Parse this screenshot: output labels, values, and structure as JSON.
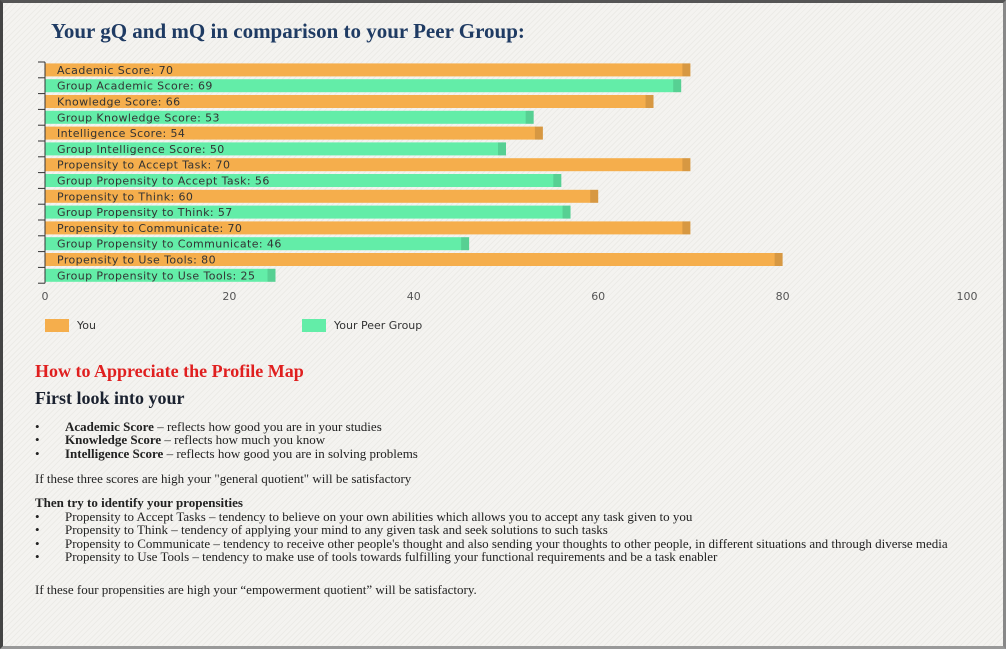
{
  "title": "Your gQ and mQ in comparison to your Peer Group:",
  "chart_data": {
    "type": "bar",
    "orientation": "horizontal",
    "categories": [
      "Academic Score: 70",
      "Group Academic Score: 69",
      "Knowledge Score: 66",
      "Group Knowledge Score: 53",
      "Intelligence Score: 54",
      "Group Intelligence Score: 50",
      "Propensity to Accept Task: 70",
      "Group Propensity to Accept Task: 56",
      "Propensity to Think: 60",
      "Group Propensity to Think: 57",
      "Propensity to Communicate: 70",
      "Group Propensity to Communicate: 46",
      "Propensity to Use Tools: 80",
      "Group Propensity to Use Tools: 25"
    ],
    "series": [
      {
        "name": "You",
        "color": "#f5ae4c",
        "values": [
          70,
          null,
          66,
          null,
          54,
          null,
          70,
          null,
          60,
          null,
          70,
          null,
          80,
          null
        ]
      },
      {
        "name": "Your Peer Group",
        "color": "#63eda8",
        "values": [
          null,
          69,
          null,
          53,
          null,
          50,
          null,
          56,
          null,
          57,
          null,
          46,
          null,
          25
        ]
      }
    ],
    "xlim": [
      0,
      100
    ],
    "xticks": [
      0,
      20,
      40,
      60,
      80,
      100
    ]
  },
  "section": {
    "heading": "How to Appreciate the Profile Map",
    "subheading": "First look into your",
    "scores": [
      {
        "term": "Academic Score",
        "text": "– reflects how good you are in your studies"
      },
      {
        "term": "Knowledge Score",
        "text": "– reflects how much you know"
      },
      {
        "term": "Intelligence Score",
        "text": "– reflects how good you are in solving problems"
      }
    ],
    "scores_note": "If these three scores are high your \"general quotient\" will be satisfactory",
    "propensities_heading": "Then try to identify your propensities",
    "propensities": [
      "Propensity to Accept Tasks – tendency to believe on your own abilities which allows you to accept any task given to you",
      "Propensity to Think – tendency of applying your mind to any given task and seek solutions to such tasks",
      "Propensity to Communicate – tendency to receive other people's thought and also sending your thoughts to other people, in different situations and through diverse media",
      "Propensity to Use Tools – tendency to make use of tools towards fulfilling your functional requirements and be a task enabler"
    ],
    "propensities_note": "If these four propensities are high your “empowerment quotient” will be satisfactory."
  }
}
